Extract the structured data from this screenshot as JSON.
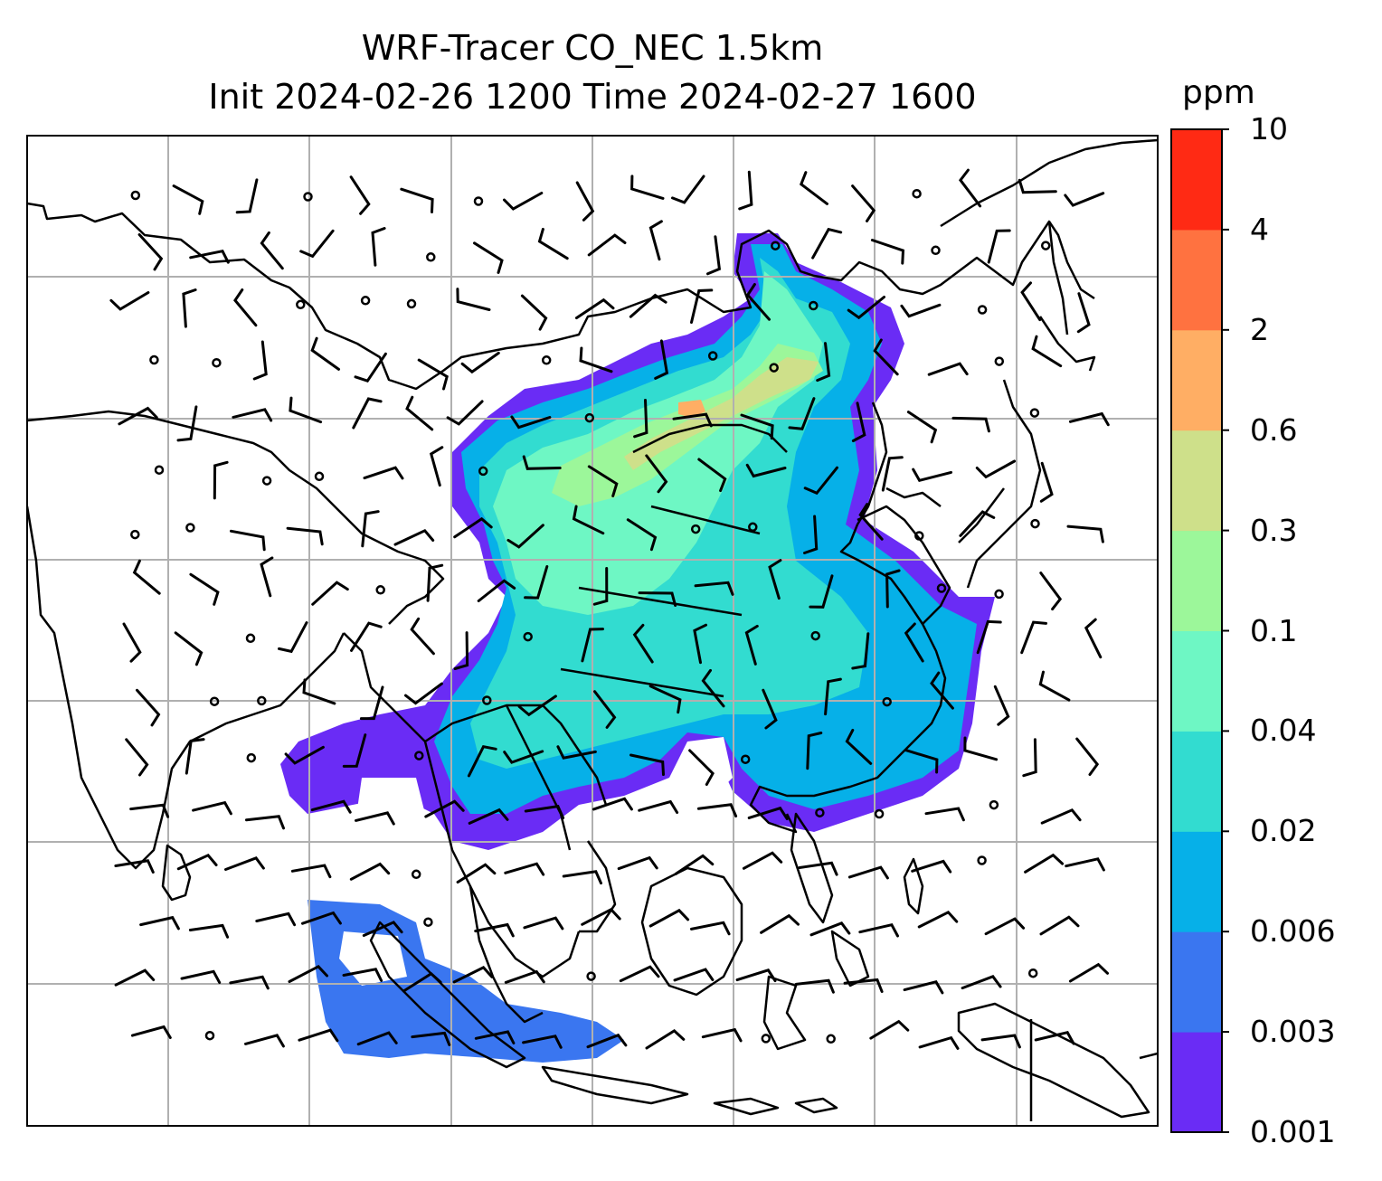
{
  "title": {
    "line1": "WRF-Tracer CO_NEC 1.5km",
    "line2": "Init 2024-02-26 1200 Time 2024-02-27 1600"
  },
  "colorbar": {
    "units": "ppm",
    "levels": [
      "0.001",
      "0.003",
      "0.006",
      "0.02",
      "0.04",
      "0.1",
      "0.3",
      "0.6",
      "2",
      "4",
      "10"
    ],
    "colors": [
      "#6a2cf5",
      "#3a76f0",
      "#06b0e8",
      "#32dcd0",
      "#6ef7c4",
      "#9cf79a",
      "#cee08a",
      "#ffae64",
      "#ff7240",
      "#ff2a14"
    ]
  },
  "map": {
    "background": "#ffffff",
    "gridline_color": "#b0b0b0",
    "coastline_color": "#000000",
    "wind_barb_color": "#000000"
  }
}
